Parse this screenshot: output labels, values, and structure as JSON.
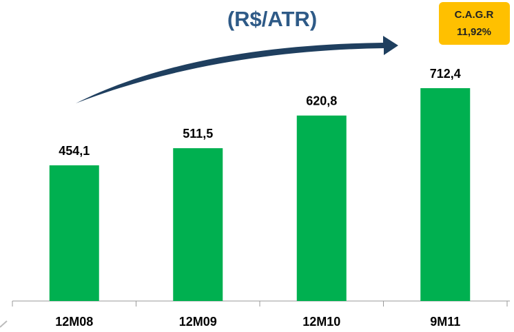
{
  "chart_data": {
    "type": "bar",
    "title": "(R$/ATR)",
    "annotations": [
      "C.A.G.R",
      "11,92%"
    ],
    "categories": [
      "12M08",
      "12M09",
      "12M10",
      "9M11"
    ],
    "values": [
      454.1,
      511.5,
      620.8,
      712.4
    ],
    "value_labels": [
      "454,1",
      "511,5",
      "620,8",
      "712,4"
    ],
    "color": "#00b050"
  }
}
